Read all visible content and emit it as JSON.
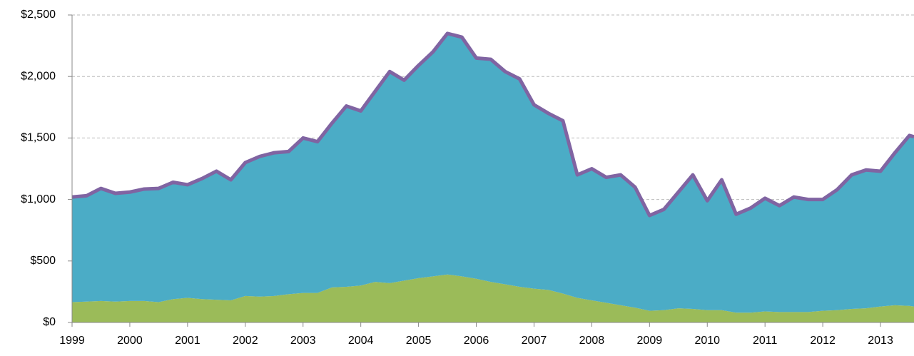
{
  "chart_data": {
    "type": "stacked_area",
    "x": [
      1999,
      1999.25,
      1999.5,
      1999.75,
      2000,
      2000.25,
      2000.5,
      2000.75,
      2001,
      2001.25,
      2001.5,
      2001.75,
      2002,
      2002.25,
      2002.5,
      2002.75,
      2003,
      2003.25,
      2003.5,
      2003.75,
      2004,
      2004.25,
      2004.5,
      2004.75,
      2005,
      2005.25,
      2005.5,
      2005.75,
      2006,
      2006.25,
      2006.5,
      2006.75,
      2007,
      2007.25,
      2007.5,
      2007.75,
      2008,
      2008.25,
      2008.5,
      2008.75,
      2009,
      2009.25,
      2009.5,
      2009.75,
      2010,
      2010.25,
      2010.5,
      2010.75,
      2011,
      2011.25,
      2011.5,
      2011.75,
      2012,
      2012.25,
      2012.5,
      2012.75,
      2013,
      2013.25,
      2013.5,
      2013.58
    ],
    "series": [
      {
        "color": "#9bbb59",
        "values": [
          165,
          170,
          175,
          170,
          175,
          175,
          165,
          190,
          200,
          190,
          185,
          180,
          215,
          210,
          215,
          230,
          240,
          240,
          285,
          290,
          300,
          330,
          320,
          340,
          360,
          375,
          390,
          375,
          355,
          330,
          310,
          290,
          275,
          265,
          235,
          200,
          180,
          160,
          140,
          120,
          95,
          100,
          115,
          110,
          100,
          100,
          80,
          80,
          90,
          85,
          85,
          85,
          95,
          100,
          110,
          115,
          130,
          140,
          135,
          130
        ]
      },
      {
        "color": "#4bacc6",
        "line_color": "#8064a2",
        "values": [
          855,
          860,
          915,
          880,
          885,
          910,
          925,
          950,
          920,
          980,
          1045,
          980,
          1085,
          1140,
          1165,
          1160,
          1260,
          1230,
          1335,
          1470,
          1420,
          1550,
          1720,
          1630,
          1730,
          1825,
          1960,
          1945,
          1795,
          1810,
          1730,
          1690,
          1495,
          1435,
          1405,
          1000,
          1070,
          1020,
          1060,
          980,
          775,
          820,
          945,
          1090,
          890,
          1060,
          800,
          850,
          920,
          865,
          935,
          915,
          905,
          980,
          1090,
          1125,
          1100,
          1240,
          1385,
          1380
        ]
      }
    ],
    "xlim": [
      1999,
      2013.58
    ],
    "xticks": [
      1999,
      2000,
      2001,
      2002,
      2003,
      2004,
      2005,
      2006,
      2007,
      2008,
      2009,
      2010,
      2011,
      2012,
      2013
    ],
    "ylim": [
      0,
      2500
    ],
    "yticks": [
      {
        "value": 0,
        "label": "$0"
      },
      {
        "value": 500,
        "label": "$500"
      },
      {
        "value": 1000,
        "label": "$1,000"
      },
      {
        "value": 1500,
        "label": "$1,500"
      },
      {
        "value": 2000,
        "label": "$2,000"
      },
      {
        "value": 2500,
        "label": "$2,500"
      }
    ],
    "grid": true
  }
}
